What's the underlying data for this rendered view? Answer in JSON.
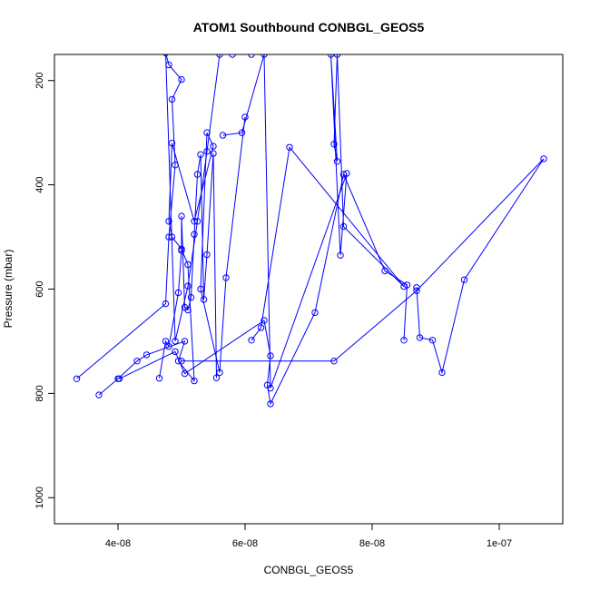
{
  "chart_data": {
    "type": "line",
    "title": "ATOM1 Southbound CONBGL_GEOS5",
    "xlabel": "CONBGL_GEOS5",
    "ylabel": "Pressure (mbar)",
    "xlim": [
      3e-08,
      1.1e-07
    ],
    "ylim": [
      1050,
      150
    ],
    "y_reversed": true,
    "x_ticks": [
      4e-08,
      6e-08,
      8e-08,
      1e-07
    ],
    "x_tick_labels": [
      "4e-08",
      "6e-08",
      "8e-08",
      "1e-07"
    ],
    "y_ticks": [
      200,
      400,
      600,
      800,
      1000
    ],
    "y_tick_labels": [
      "200",
      "400",
      "600",
      "800",
      "1000"
    ],
    "grid": false,
    "legend": "none",
    "series_color": "#0000ff",
    "series": [
      {
        "x": [
          3.35e-08,
          4.75e-08,
          4.8e-08,
          4.9e-08,
          4.85e-08,
          5e-08,
          4.8e-08,
          4.75e-08,
          4.9e-08,
          5.1e-08,
          5.25e-08,
          5.4e-08,
          5.6e-08,
          5.8e-08,
          6.1e-08
        ],
        "y": [
          772,
          628,
          500,
          362,
          236,
          198,
          170,
          147,
          700,
          594,
          470,
          336,
          150,
          150,
          150
        ]
      },
      {
        "x": [
          3.7e-08,
          4e-08,
          4.3e-08,
          4.45e-08,
          5.05e-08,
          4.95e-08,
          5.2e-08,
          5.1e-08,
          5e-08,
          4.85e-08,
          4.8e-08,
          4.85e-08,
          5.2e-08,
          5.5e-08,
          5.4e-08,
          5.3e-08,
          5.6e-08,
          5.7e-08,
          6e-08
        ],
        "y": [
          803,
          772,
          738,
          726,
          700,
          738,
          776,
          553,
          523,
          500,
          470,
          320,
          470,
          326,
          300,
          600,
          760,
          578,
          270
        ]
      },
      {
        "x": [
          4.65e-08,
          4.75e-08,
          4.8e-08,
          4.95e-08,
          5e-08,
          5e-08,
          5.05e-08,
          5.1e-08,
          5.15e-08,
          5.2e-08,
          5.25e-08,
          5.3e-08,
          5.35e-08,
          5.4e-08,
          5.5e-08,
          5.55e-08
        ],
        "y": [
          771,
          700,
          710,
          607,
          526,
          460,
          635,
          640,
          616,
          495,
          380,
          342,
          620,
          534,
          340,
          770
        ]
      },
      {
        "x": [
          4.02e-08,
          4.9e-08,
          5.05e-08,
          6.3e-08,
          6.4e-08,
          6.35e-08,
          6.4e-08,
          7.1e-08,
          7.55e-08,
          8.2e-08,
          8.55e-08,
          8.5e-08
        ],
        "y": [
          772,
          720,
          762,
          660,
          728,
          784,
          820,
          645,
          380,
          565,
          592,
          698
        ]
      },
      {
        "x": [
          5e-08,
          7.4e-08,
          8.7e-08,
          1.07e-07,
          9.45e-08,
          9.1e-08,
          8.95e-08,
          8.75e-08,
          8.7e-08
        ],
        "y": [
          738,
          738,
          603,
          350,
          582,
          760,
          698,
          693,
          597
        ]
      },
      {
        "x": [
          6.1e-08,
          6.25e-08,
          6.7e-08,
          8.5e-08,
          7.55e-08,
          7.45e-08,
          7.4e-08,
          7.45e-08,
          7.35e-08,
          7.5e-08,
          7.6e-08,
          6.4e-08,
          6.3e-08,
          5.95e-08,
          5.65e-08
        ],
        "y": [
          698,
          674,
          328,
          595,
          480,
          150,
          322,
          355,
          150,
          535,
          378,
          790,
          150,
          300,
          305
        ]
      }
    ]
  }
}
